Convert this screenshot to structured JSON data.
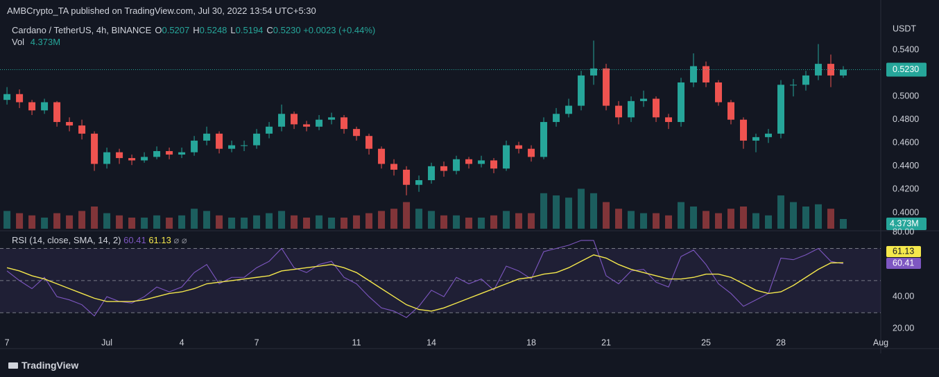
{
  "header": {
    "attribution": "AMBCrypto_TA published on TradingView.com, Jul 30, 2022 13:54 UTC+5:30"
  },
  "footer": {
    "logo": "TradingView"
  },
  "chart_data": [
    {
      "type": "candlestick",
      "title": "Cardano / TetherUS, 4h, BINANCE",
      "legend": [
        {
          "key": "O",
          "value": "0.5207"
        },
        {
          "key": "H",
          "value": "0.5248"
        },
        {
          "key": "L",
          "value": "0.5194"
        },
        {
          "key": "C",
          "value": "0.5230"
        }
      ],
      "change": "+0.0023 (+0.44%)",
      "y_unit": "USDT",
      "x": [
        0,
        0.5,
        1,
        1.5,
        2,
        2.5,
        3,
        3.5,
        4,
        4.5,
        5,
        5.5,
        6,
        6.5,
        7,
        7.5,
        8,
        8.5,
        9,
        9.5,
        10,
        10.5,
        11,
        11.5,
        12,
        12.5,
        13,
        13.5,
        14,
        14.5,
        15,
        15.5,
        16,
        16.5,
        17,
        17.5,
        18,
        18.5,
        19,
        19.5,
        20,
        20.5,
        21,
        21.5,
        22,
        22.5,
        23,
        23.5,
        24,
        24.5,
        25,
        25.5,
        26,
        26.5,
        27,
        27.5,
        28,
        28.5,
        29,
        29.5,
        30,
        30.5,
        31,
        31.5,
        32,
        32.5,
        33,
        33.5
      ],
      "open": [
        0.497,
        0.502,
        0.495,
        0.488,
        0.495,
        0.478,
        0.475,
        0.468,
        0.442,
        0.452,
        0.447,
        0.445,
        0.448,
        0.453,
        0.45,
        0.452,
        0.462,
        0.468,
        0.455,
        0.458,
        0.458,
        0.468,
        0.474,
        0.485,
        0.476,
        0.474,
        0.48,
        0.482,
        0.472,
        0.466,
        0.455,
        0.442,
        0.437,
        0.424,
        0.428,
        0.44,
        0.436,
        0.446,
        0.442,
        0.445,
        0.438,
        0.458,
        0.455,
        0.448,
        0.478,
        0.485,
        0.492,
        0.518,
        0.524,
        0.492,
        0.482,
        0.496,
        0.498,
        0.482,
        0.478,
        0.512,
        0.526,
        0.512,
        0.495,
        0.48,
        0.462,
        0.465,
        0.468,
        0.51,
        0.51,
        0.518,
        0.528,
        0.518
      ],
      "high": [
        0.508,
        0.506,
        0.497,
        0.498,
        0.496,
        0.482,
        0.48,
        0.47,
        0.456,
        0.455,
        0.45,
        0.452,
        0.457,
        0.456,
        0.456,
        0.466,
        0.474,
        0.47,
        0.462,
        0.462,
        0.472,
        0.478,
        0.493,
        0.487,
        0.479,
        0.484,
        0.486,
        0.484,
        0.474,
        0.468,
        0.457,
        0.446,
        0.44,
        0.432,
        0.443,
        0.444,
        0.449,
        0.448,
        0.449,
        0.447,
        0.462,
        0.461,
        0.458,
        0.482,
        0.49,
        0.498,
        0.522,
        0.548,
        0.528,
        0.496,
        0.5,
        0.505,
        0.5,
        0.485,
        0.516,
        0.537,
        0.53,
        0.514,
        0.497,
        0.482,
        0.468,
        0.472,
        0.514,
        0.515,
        0.522,
        0.545,
        0.536,
        0.526
      ],
      "low": [
        0.493,
        0.49,
        0.484,
        0.485,
        0.474,
        0.47,
        0.463,
        0.436,
        0.438,
        0.442,
        0.441,
        0.443,
        0.446,
        0.446,
        0.447,
        0.449,
        0.458,
        0.451,
        0.452,
        0.453,
        0.455,
        0.464,
        0.47,
        0.472,
        0.47,
        0.471,
        0.476,
        0.468,
        0.462,
        0.45,
        0.438,
        0.432,
        0.415,
        0.418,
        0.425,
        0.431,
        0.433,
        0.438,
        0.439,
        0.434,
        0.436,
        0.451,
        0.444,
        0.446,
        0.474,
        0.482,
        0.488,
        0.51,
        0.488,
        0.476,
        0.478,
        0.491,
        0.478,
        0.472,
        0.474,
        0.508,
        0.508,
        0.492,
        0.476,
        0.455,
        0.452,
        0.46,
        0.464,
        0.5,
        0.505,
        0.514,
        0.508,
        0.516
      ],
      "close": [
        0.502,
        0.495,
        0.488,
        0.495,
        0.478,
        0.475,
        0.468,
        0.442,
        0.452,
        0.447,
        0.445,
        0.448,
        0.453,
        0.45,
        0.452,
        0.462,
        0.468,
        0.455,
        0.458,
        0.458,
        0.468,
        0.474,
        0.485,
        0.476,
        0.474,
        0.48,
        0.482,
        0.472,
        0.466,
        0.455,
        0.442,
        0.437,
        0.424,
        0.428,
        0.44,
        0.436,
        0.446,
        0.442,
        0.445,
        0.438,
        0.458,
        0.455,
        0.448,
        0.478,
        0.485,
        0.492,
        0.518,
        0.524,
        0.492,
        0.482,
        0.496,
        0.498,
        0.482,
        0.478,
        0.512,
        0.526,
        0.512,
        0.495,
        0.48,
        0.462,
        0.465,
        0.468,
        0.51,
        0.51,
        0.518,
        0.528,
        0.518,
        0.523
      ],
      "last_label": "0.5230",
      "volume": {
        "name": "Vol",
        "axis": "y2",
        "values": [
          8,
          7,
          6,
          5,
          7,
          6,
          8,
          10,
          7,
          6,
          5,
          5,
          6,
          5,
          6,
          9,
          8,
          6,
          5,
          5,
          6,
          7,
          8,
          6,
          5,
          6,
          5,
          5,
          6,
          7,
          8,
          9,
          12,
          9,
          8,
          6,
          6,
          5,
          5,
          6,
          8,
          7,
          7,
          16,
          15,
          14,
          18,
          16,
          12,
          9,
          8,
          7,
          7,
          6,
          12,
          10,
          8,
          7,
          9,
          10,
          7,
          6,
          15,
          12,
          10,
          11,
          9,
          4.373
        ],
        "last_label": "4.373M"
      },
      "ylim": [
        0.3863,
        0.565
      ],
      "yticks": [
        {
          "value": 0.4,
          "label": "0.4000"
        },
        {
          "value": 0.42,
          "label": "0.4200"
        },
        {
          "value": 0.44,
          "label": "0.4400"
        },
        {
          "value": 0.46,
          "label": "0.4600"
        },
        {
          "value": 0.48,
          "label": "0.4800"
        },
        {
          "value": 0.5,
          "label": "0.5000"
        },
        {
          "value": 0.54,
          "label": "0.5400"
        }
      ],
      "y2lim": [
        0,
        25
      ],
      "xlim": [
        -0.28,
        35
      ],
      "up_color": "#26a69a",
      "down_color": "#ef5350"
    },
    {
      "type": "line",
      "title": "RSI (14, close, SMA, 14, 2)",
      "x": [
        0,
        0.5,
        1,
        1.5,
        2,
        2.5,
        3,
        3.5,
        4,
        4.5,
        5,
        5.5,
        6,
        6.5,
        7,
        7.5,
        8,
        8.5,
        9,
        9.5,
        10,
        10.5,
        11,
        11.5,
        12,
        12.5,
        13,
        13.5,
        14,
        14.5,
        15,
        15.5,
        16,
        16.5,
        17,
        17.5,
        18,
        18.5,
        19,
        19.5,
        20,
        20.5,
        21,
        21.5,
        22,
        22.5,
        23,
        23.5,
        24,
        24.5,
        25,
        25.5,
        26,
        26.5,
        27,
        27.5,
        28,
        28.5,
        29,
        29.5,
        30,
        30.5,
        31,
        31.5,
        32,
        32.5,
        33,
        33.5
      ],
      "series": [
        {
          "color": "#7e57c2",
          "values": [
            56,
            50,
            45,
            52,
            40,
            38,
            35,
            28,
            40,
            37,
            36,
            40,
            46,
            43,
            46,
            55,
            60,
            48,
            52,
            52,
            58,
            62,
            70,
            58,
            55,
            60,
            62,
            52,
            48,
            40,
            33,
            31,
            27,
            34,
            44,
            40,
            52,
            48,
            51,
            44,
            59,
            56,
            51,
            68,
            70,
            72,
            75,
            75,
            53,
            48,
            56,
            57,
            49,
            46,
            65,
            69,
            60,
            48,
            42,
            34,
            38,
            42,
            64,
            63,
            66,
            70,
            62,
            60.41
          ]
        },
        {
          "color": "#f5e84c",
          "values": [
            58,
            56,
            53,
            51,
            48,
            45,
            42,
            39,
            37,
            37,
            37,
            38,
            40,
            42,
            43,
            45,
            48,
            49,
            50,
            51,
            52,
            53,
            56,
            57,
            58,
            59,
            60,
            58,
            55,
            50,
            45,
            40,
            35,
            32,
            31,
            33,
            36,
            39,
            42,
            45,
            48,
            51,
            52,
            54,
            55,
            58,
            62,
            66,
            64,
            60,
            57,
            55,
            53,
            51,
            51,
            52,
            54,
            54,
            52,
            48,
            44,
            42,
            43,
            47,
            52,
            57,
            61,
            61.13
          ]
        }
      ],
      "ylim": [
        12,
        81
      ],
      "yticks": [
        {
          "value": 20,
          "label": "20.00"
        },
        {
          "value": 40,
          "label": "40.00"
        },
        {
          "value": 80,
          "label": "80.00"
        }
      ],
      "hlines": [
        70,
        50,
        30
      ],
      "band": [
        30,
        70
      ],
      "xlim": [
        -0.28,
        35
      ],
      "xticks": [
        {
          "value": 0,
          "label": "7"
        },
        {
          "value": 4,
          "label": "Jul"
        },
        {
          "value": 7,
          "label": "4"
        },
        {
          "value": 10,
          "label": "7"
        },
        {
          "value": 14,
          "label": "11"
        },
        {
          "value": 17,
          "label": "14"
        },
        {
          "value": 21,
          "label": "18"
        },
        {
          "value": 24,
          "label": "21"
        },
        {
          "value": 28,
          "label": "25"
        },
        {
          "value": 31,
          "label": "28"
        },
        {
          "value": 35,
          "label": "Aug"
        }
      ]
    }
  ]
}
